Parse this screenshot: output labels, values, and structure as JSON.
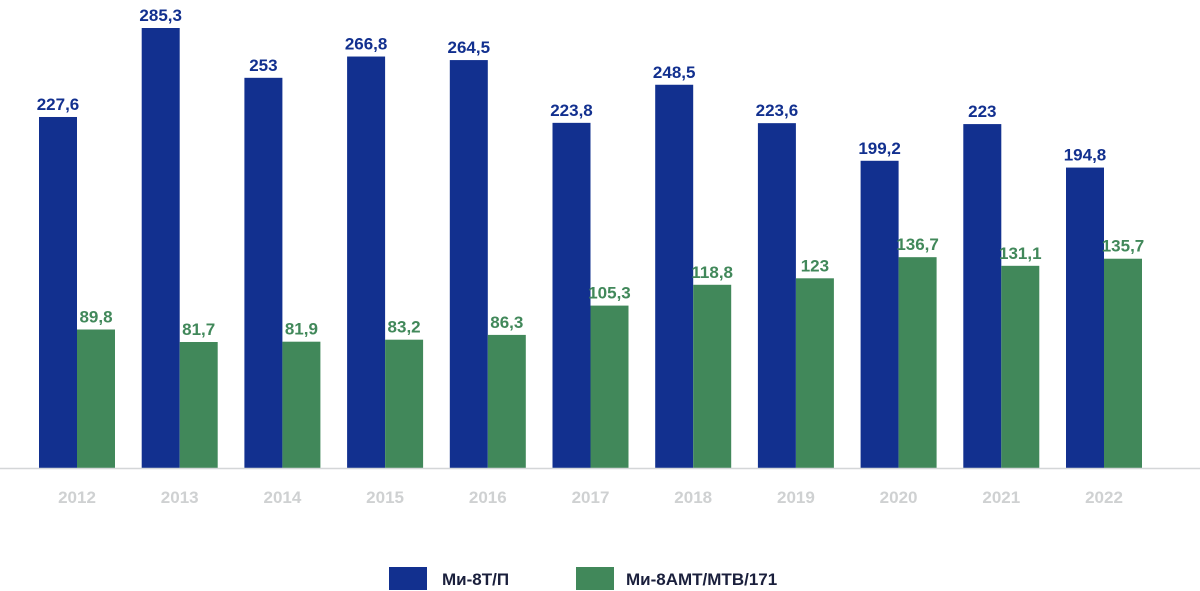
{
  "chart_data": {
    "type": "bar",
    "categories": [
      "2012",
      "2013",
      "2014",
      "2015",
      "2016",
      "2017",
      "2018",
      "2019",
      "2020",
      "2021",
      "2022"
    ],
    "series": [
      {
        "name": "Ми-8Т/П",
        "color": "#12308f",
        "values": [
          227.6,
          285.3,
          253,
          266.8,
          264.5,
          223.8,
          248.5,
          223.6,
          199.2,
          223,
          194.8
        ],
        "labels": [
          "227,6",
          "285,3",
          "253",
          "266,8",
          "264,5",
          "223,8",
          "248,5",
          "223,6",
          "199,2",
          "223",
          "194,8"
        ]
      },
      {
        "name": "Ми-8АМТ/МТВ/171",
        "color": "#41885a",
        "values": [
          89.8,
          81.7,
          81.9,
          83.2,
          86.3,
          105.3,
          118.8,
          123,
          136.7,
          131.1,
          135.7
        ],
        "labels": [
          "89,8",
          "81,7",
          "81,9",
          "83,2",
          "86,3",
          "105,3",
          "118,8",
          "123",
          "136,7",
          "131,1",
          "135,7"
        ]
      }
    ],
    "ylim": [
      0,
      285.3
    ],
    "grid": false,
    "legend_position": "bottom-center",
    "axis_color": "#d4d6d8",
    "tick_label_color": "#cfd1d2"
  }
}
